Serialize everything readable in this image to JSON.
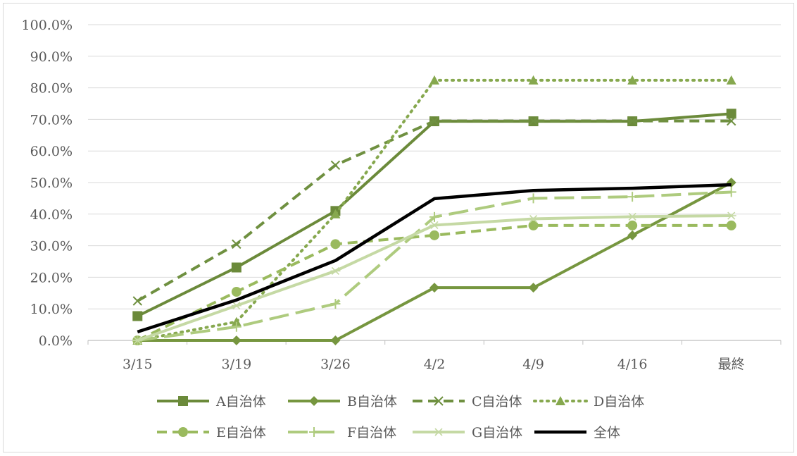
{
  "chart_data": {
    "type": "line",
    "categories": [
      "3/15",
      "3/19",
      "3/26",
      "4/2",
      "4/9",
      "4/16",
      "最終"
    ],
    "ylim": [
      0,
      1
    ],
    "yticks": [
      0,
      0.1,
      0.2,
      0.3,
      0.4,
      0.5,
      0.6,
      0.7,
      0.8,
      0.9,
      1.0
    ],
    "ytick_labels": [
      "0.0%",
      "10.0%",
      "20.0%",
      "30.0%",
      "40.0%",
      "50.0%",
      "60.0%",
      "70.0%",
      "80.0%",
      "90.0%",
      "100.0%"
    ],
    "grid": true,
    "legend_position": "bottom",
    "series": [
      {
        "name": "A自治体",
        "values": [
          0.077,
          0.231,
          0.41,
          0.694,
          0.694,
          0.694,
          0.718
        ],
        "color": "#6b8a3a",
        "dash": "solid",
        "marker": "square"
      },
      {
        "name": "B自治体",
        "values": [
          0.0,
          0.0,
          0.0,
          0.167,
          0.167,
          0.333,
          0.5
        ],
        "color": "#76963f",
        "dash": "solid",
        "marker": "diamond"
      },
      {
        "name": "C自治体",
        "values": [
          0.125,
          0.305,
          0.555,
          0.695,
          0.695,
          0.695,
          0.695
        ],
        "color": "#6f9040",
        "dash": "dash",
        "marker": "x"
      },
      {
        "name": "D自治体",
        "values": [
          0.0,
          0.059,
          0.4,
          0.824,
          0.824,
          0.824,
          0.824
        ],
        "color": "#86a84e",
        "dash": "dot",
        "marker": "triangle"
      },
      {
        "name": "E自治体",
        "values": [
          0.0,
          0.154,
          0.305,
          0.333,
          0.364,
          0.364,
          0.364
        ],
        "color": "#9aba5e",
        "dash": "dash",
        "marker": "circle"
      },
      {
        "name": "F自治体",
        "values": [
          0.0,
          0.043,
          0.116,
          0.391,
          0.45,
          0.455,
          0.47
        ],
        "color": "#aecb7e",
        "dash": "longdash",
        "marker": "plus"
      },
      {
        "name": "G自治体",
        "values": [
          0.0,
          0.11,
          0.22,
          0.365,
          0.385,
          0.392,
          0.395
        ],
        "color": "#c5d9a4",
        "dash": "solid",
        "marker": "asterisk"
      },
      {
        "name": "全体",
        "values": [
          0.027,
          0.128,
          0.253,
          0.449,
          0.475,
          0.482,
          0.493
        ],
        "color": "#000000",
        "dash": "solid",
        "marker": "none"
      }
    ]
  }
}
